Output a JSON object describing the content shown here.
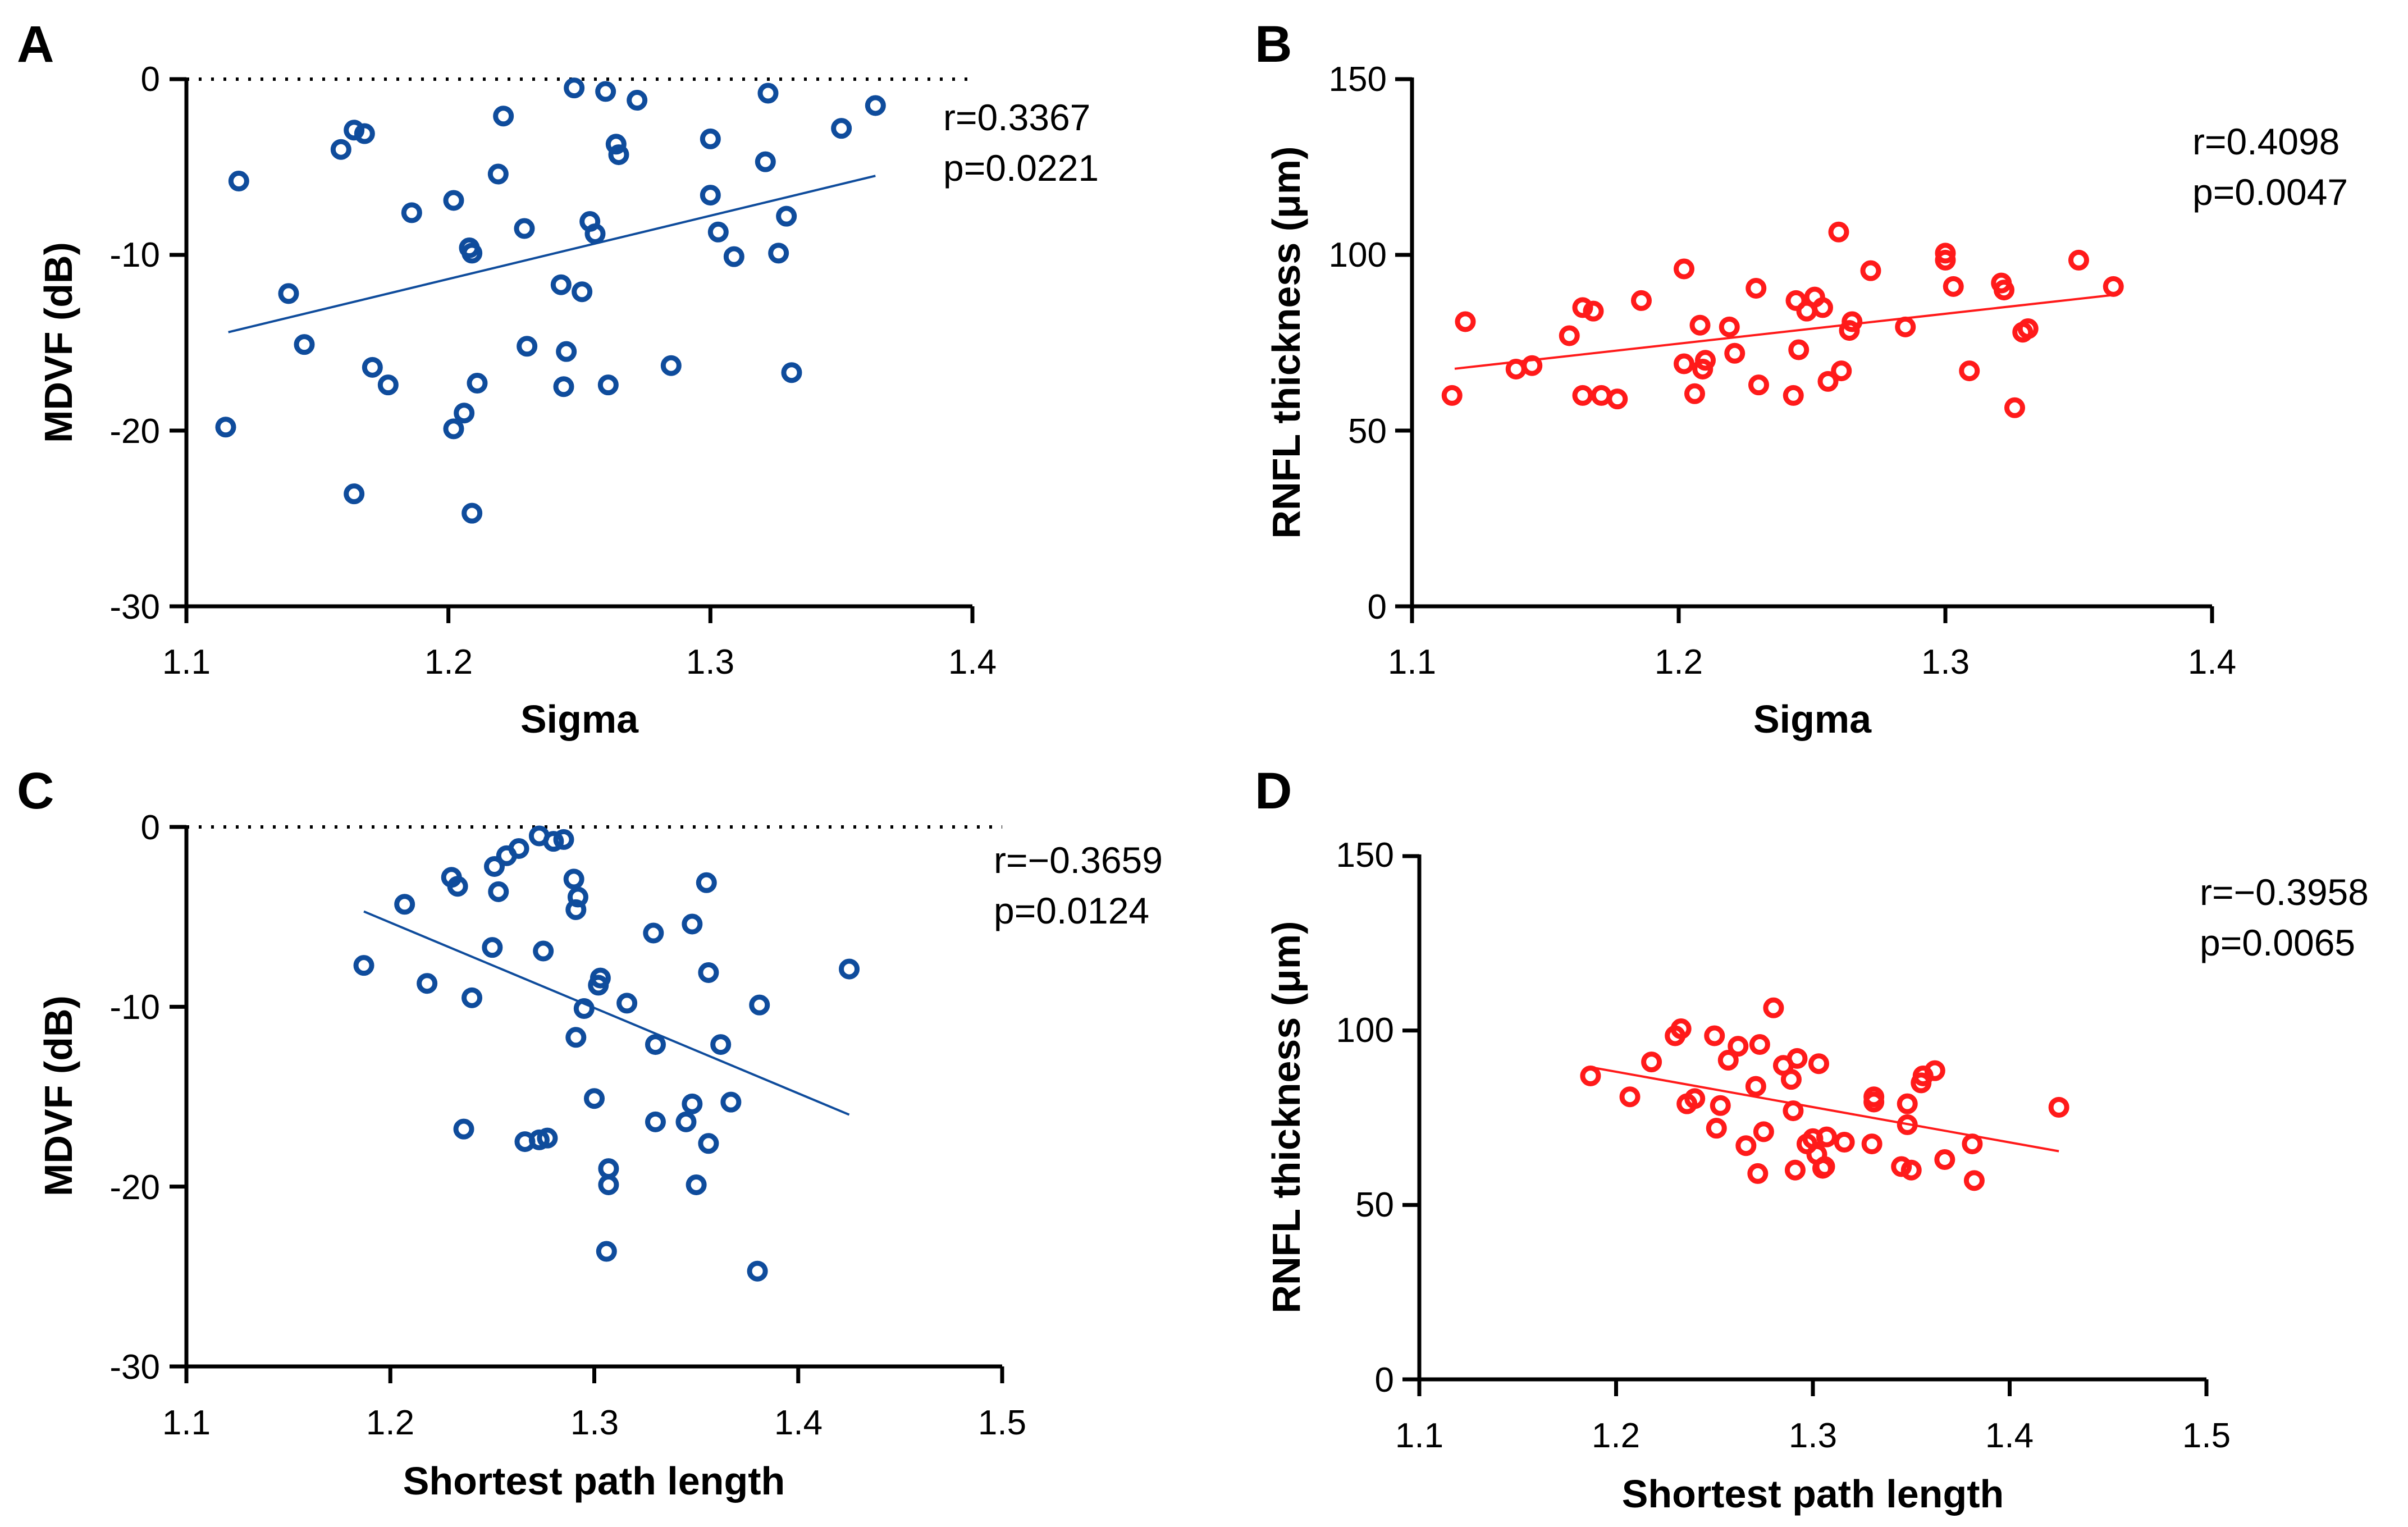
{
  "chart_data": [
    {
      "panel_label": "A",
      "type": "scatter",
      "xlabel": "Sigma",
      "ylabel": "MDVF (dB)",
      "xlim": [
        1.1,
        1.4
      ],
      "ylim": [
        -30,
        0
      ],
      "xticks": [
        "1.1",
        "1.2",
        "1.3",
        "1.4"
      ],
      "yticks": [
        "0",
        "-10",
        "-20",
        "-30"
      ],
      "zero_reference_line": true,
      "color": "#0F4C9C",
      "stats": [
        "r=0.3367",
        "p=0.0221"
      ],
      "fit": {
        "x": [
          1.116,
          1.363
        ],
        "y": [
          -14.4,
          -5.5
        ]
      },
      "points": [
        [
          1.115,
          -19.8
        ],
        [
          1.12,
          -5.8
        ],
        [
          1.139,
          -12.2
        ],
        [
          1.145,
          -15.1
        ],
        [
          1.159,
          -4.0
        ],
        [
          1.164,
          -2.9
        ],
        [
          1.164,
          -23.6
        ],
        [
          1.168,
          -3.1
        ],
        [
          1.171,
          -16.4
        ],
        [
          1.177,
          -17.4
        ],
        [
          1.186,
          -7.6
        ],
        [
          1.202,
          -6.9
        ],
        [
          1.202,
          -19.9
        ],
        [
          1.206,
          -19.0
        ],
        [
          1.208,
          -9.6
        ],
        [
          1.209,
          -9.9
        ],
        [
          1.209,
          -24.7
        ],
        [
          1.211,
          -17.3
        ],
        [
          1.219,
          -5.4
        ],
        [
          1.221,
          -2.1
        ],
        [
          1.229,
          -8.5
        ],
        [
          1.23,
          -15.2
        ],
        [
          1.243,
          -11.7
        ],
        [
          1.244,
          -17.5
        ],
        [
          1.245,
          -15.5
        ],
        [
          1.248,
          -0.5
        ],
        [
          1.251,
          -12.1
        ],
        [
          1.254,
          -8.1
        ],
        [
          1.256,
          -8.8
        ],
        [
          1.26,
          -0.7
        ],
        [
          1.261,
          -17.4
        ],
        [
          1.264,
          -3.7
        ],
        [
          1.265,
          -4.3
        ],
        [
          1.272,
          -1.2
        ],
        [
          1.285,
          -16.3
        ],
        [
          1.3,
          -3.4
        ],
        [
          1.3,
          -6.6
        ],
        [
          1.303,
          -8.7
        ],
        [
          1.309,
          -10.1
        ],
        [
          1.321,
          -4.7
        ],
        [
          1.322,
          -0.8
        ],
        [
          1.326,
          -9.9
        ],
        [
          1.329,
          -7.8
        ],
        [
          1.331,
          -16.7
        ],
        [
          1.35,
          -2.8
        ],
        [
          1.363,
          -1.5
        ]
      ]
    },
    {
      "panel_label": "B",
      "type": "scatter",
      "xlabel": "Sigma",
      "ylabel": "RNFL thickness (μm)",
      "xlim": [
        1.1,
        1.4
      ],
      "ylim": [
        0,
        150
      ],
      "xticks": [
        "1.1",
        "1.2",
        "1.3",
        "1.4"
      ],
      "yticks": [
        "150",
        "100",
        "50",
        "0"
      ],
      "zero_reference_line": false,
      "color": "#FF1A1A",
      "stats": [
        "r=0.4098",
        "p=0.0047"
      ],
      "fit": {
        "x": [
          1.116,
          1.363
        ],
        "y": [
          67.6,
          88.6
        ]
      },
      "points": [
        [
          1.115,
          60
        ],
        [
          1.12,
          81
        ],
        [
          1.139,
          67.5
        ],
        [
          1.145,
          68.5
        ],
        [
          1.159,
          77
        ],
        [
          1.164,
          85
        ],
        [
          1.164,
          60
        ],
        [
          1.168,
          84
        ],
        [
          1.171,
          60
        ],
        [
          1.177,
          59
        ],
        [
          1.186,
          87
        ],
        [
          1.202,
          96
        ],
        [
          1.202,
          69
        ],
        [
          1.206,
          60.5
        ],
        [
          1.208,
          80
        ],
        [
          1.209,
          67.5
        ],
        [
          1.21,
          70
        ],
        [
          1.219,
          79.5
        ],
        [
          1.221,
          72
        ],
        [
          1.229,
          90.5
        ],
        [
          1.23,
          63
        ],
        [
          1.243,
          60
        ],
        [
          1.244,
          87
        ],
        [
          1.245,
          73
        ],
        [
          1.248,
          84
        ],
        [
          1.251,
          88
        ],
        [
          1.254,
          85
        ],
        [
          1.256,
          64
        ],
        [
          1.26,
          106.5
        ],
        [
          1.261,
          67
        ],
        [
          1.264,
          78.5
        ],
        [
          1.265,
          81
        ],
        [
          1.272,
          95.5
        ],
        [
          1.285,
          79.5
        ],
        [
          1.3,
          100.5
        ],
        [
          1.3,
          98.5
        ],
        [
          1.303,
          91
        ],
        [
          1.309,
          67
        ],
        [
          1.321,
          92
        ],
        [
          1.322,
          90
        ],
        [
          1.326,
          56.5
        ],
        [
          1.329,
          78
        ],
        [
          1.331,
          79
        ],
        [
          1.35,
          98.5
        ],
        [
          1.363,
          91
        ]
      ]
    },
    {
      "panel_label": "C",
      "type": "scatter",
      "xlabel": "Shortest path length",
      "ylabel": "MDVF (dB)",
      "xlim": [
        1.1,
        1.5
      ],
      "ylim": [
        -30,
        0
      ],
      "xticks": [
        "1.1",
        "1.2",
        "1.3",
        "1.4",
        "1.5"
      ],
      "yticks": [
        "0",
        "-10",
        "-20",
        "-30"
      ],
      "zero_reference_line": true,
      "color": "#0F4C9C",
      "stats": [
        "r=−0.3659",
        "p=0.0124"
      ],
      "fit": {
        "x": [
          1.187,
          1.425
        ],
        "y": [
          -4.7,
          -16.0
        ]
      },
      "points": [
        [
          1.187,
          -7.7
        ],
        [
          1.207,
          -4.3
        ],
        [
          1.218,
          -8.7
        ],
        [
          1.23,
          -2.8
        ],
        [
          1.233,
          -3.3
        ],
        [
          1.236,
          -16.8
        ],
        [
          1.24,
          -9.5
        ],
        [
          1.25,
          -6.7
        ],
        [
          1.251,
          -2.2
        ],
        [
          1.253,
          -3.6
        ],
        [
          1.257,
          -1.6
        ],
        [
          1.263,
          -1.2
        ],
        [
          1.266,
          -17.5
        ],
        [
          1.273,
          -0.5
        ],
        [
          1.273,
          -17.4
        ],
        [
          1.275,
          -6.9
        ],
        [
          1.277,
          -17.3
        ],
        [
          1.28,
          -0.8
        ],
        [
          1.285,
          -0.7
        ],
        [
          1.29,
          -2.9
        ],
        [
          1.291,
          -4.6
        ],
        [
          1.291,
          -11.7
        ],
        [
          1.292,
          -3.9
        ],
        [
          1.295,
          -10.1
        ],
        [
          1.3,
          -15.1
        ],
        [
          1.302,
          -8.8
        ],
        [
          1.303,
          -8.4
        ],
        [
          1.306,
          -23.6
        ],
        [
          1.307,
          -19.0
        ],
        [
          1.307,
          -19.9
        ],
        [
          1.316,
          -9.8
        ],
        [
          1.329,
          -5.9
        ],
        [
          1.33,
          -12.1
        ],
        [
          1.33,
          -16.4
        ],
        [
          1.345,
          -16.4
        ],
        [
          1.348,
          -5.4
        ],
        [
          1.348,
          -15.4
        ],
        [
          1.35,
          -19.9
        ],
        [
          1.355,
          -3.1
        ],
        [
          1.356,
          -8.1
        ],
        [
          1.356,
          -17.6
        ],
        [
          1.362,
          -12.1
        ],
        [
          1.367,
          -15.3
        ],
        [
          1.38,
          -24.7
        ],
        [
          1.381,
          -9.9
        ],
        [
          1.425,
          -7.9
        ]
      ]
    },
    {
      "panel_label": "D",
      "type": "scatter",
      "xlabel": "Shortest path length",
      "ylabel": "RNFL thickness (μm)",
      "xlim": [
        1.1,
        1.5
      ],
      "ylim": [
        0,
        150
      ],
      "xticks": [
        "1.1",
        "1.2",
        "1.3",
        "1.4",
        "1.5"
      ],
      "yticks": [
        "150",
        "100",
        "50",
        "0"
      ],
      "zero_reference_line": false,
      "color": "#FF1A1A",
      "stats": [
        "r=−0.3958",
        "p=0.0065"
      ],
      "fit": {
        "x": [
          1.187,
          1.425
        ],
        "y": [
          89.5,
          65.4
        ]
      },
      "points": [
        [
          1.187,
          87
        ],
        [
          1.207,
          81
        ],
        [
          1.218,
          91
        ],
        [
          1.23,
          98.5
        ],
        [
          1.233,
          100.5
        ],
        [
          1.236,
          79
        ],
        [
          1.24,
          80.5
        ],
        [
          1.25,
          98.5
        ],
        [
          1.251,
          72
        ],
        [
          1.253,
          78.5
        ],
        [
          1.257,
          91.5
        ],
        [
          1.262,
          95.5
        ],
        [
          1.266,
          67
        ],
        [
          1.271,
          84
        ],
        [
          1.272,
          59
        ],
        [
          1.273,
          96
        ],
        [
          1.275,
          71
        ],
        [
          1.28,
          106.5
        ],
        [
          1.285,
          90
        ],
        [
          1.289,
          86
        ],
        [
          1.29,
          77
        ],
        [
          1.291,
          60
        ],
        [
          1.292,
          92
        ],
        [
          1.297,
          67.5
        ],
        [
          1.3,
          69
        ],
        [
          1.302,
          64.5
        ],
        [
          1.303,
          90.5
        ],
        [
          1.305,
          60.5
        ],
        [
          1.306,
          61
        ],
        [
          1.307,
          69.5
        ],
        [
          1.316,
          68
        ],
        [
          1.33,
          67.5
        ],
        [
          1.331,
          81
        ],
        [
          1.331,
          79.5
        ],
        [
          1.345,
          61
        ],
        [
          1.348,
          79
        ],
        [
          1.348,
          73
        ],
        [
          1.35,
          60
        ],
        [
          1.355,
          85
        ],
        [
          1.356,
          87
        ],
        [
          1.362,
          88.5
        ],
        [
          1.367,
          63
        ],
        [
          1.381,
          67.5
        ],
        [
          1.382,
          57
        ],
        [
          1.425,
          78
        ]
      ]
    }
  ]
}
